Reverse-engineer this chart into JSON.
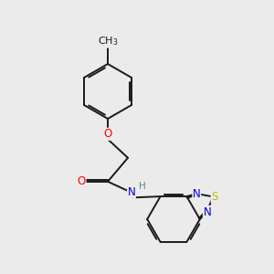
{
  "background_color": "#ebebeb",
  "bond_color": "#1a1a1a",
  "bond_width": 1.4,
  "dbo": 0.055,
  "atom_colors": {
    "O": "#ff0000",
    "N": "#0000dd",
    "S": "#bbbb00",
    "H": "#5a8a8a"
  },
  "font_size": 8.5,
  "fig_size": [
    3.0,
    3.0
  ],
  "dpi": 100
}
